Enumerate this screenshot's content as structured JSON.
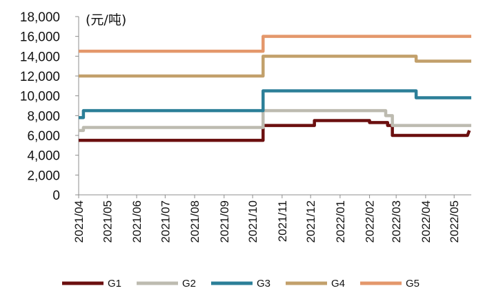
{
  "chart_data": {
    "type": "line",
    "step": true,
    "unit_label": "(元/吨)",
    "ylim": [
      0,
      18000
    ],
    "y_ticks": [
      {
        "value": 0,
        "label": "0"
      },
      {
        "value": 2000,
        "label": "2,000"
      },
      {
        "value": 4000,
        "label": "4,000"
      },
      {
        "value": 6000,
        "label": "6,000"
      },
      {
        "value": 8000,
        "label": "8,000"
      },
      {
        "value": 10000,
        "label": "10,000"
      },
      {
        "value": 12000,
        "label": "12,000"
      },
      {
        "value": 14000,
        "label": "14,000"
      },
      {
        "value": 16000,
        "label": "16,000"
      },
      {
        "value": 18000,
        "label": "18,000"
      }
    ],
    "x_ticks": [
      "2021/04",
      "2021/05",
      "2021/06",
      "2021/07",
      "2021/08",
      "2021/09",
      "2021/10",
      "2021/11",
      "2021/12",
      "2022/01",
      "2022/02",
      "2022/03",
      "2022/04",
      "2022/05"
    ],
    "xlim": [
      "2021-04-01",
      "2022-05-19"
    ],
    "grid": false,
    "legend_position": "bottom",
    "series": [
      {
        "name": "G1",
        "color": "#6b0f0f",
        "points": [
          [
            "2021-04-01",
            5500
          ],
          [
            "2021-10-12",
            5500
          ],
          [
            "2021-10-12",
            7000
          ],
          [
            "2021-12-05",
            7000
          ],
          [
            "2021-12-05",
            7500
          ],
          [
            "2022-02-01",
            7500
          ],
          [
            "2022-02-01",
            7300
          ],
          [
            "2022-02-20",
            7300
          ],
          [
            "2022-02-20",
            7000
          ],
          [
            "2022-02-25",
            7000
          ],
          [
            "2022-02-25",
            6000
          ],
          [
            "2022-05-15",
            6000
          ],
          [
            "2022-05-17",
            6500
          ]
        ]
      },
      {
        "name": "G2",
        "color": "#bdbbb0",
        "points": [
          [
            "2021-04-01",
            6500
          ],
          [
            "2021-04-06",
            6500
          ],
          [
            "2021-04-06",
            6800
          ],
          [
            "2021-10-12",
            6800
          ],
          [
            "2021-10-12",
            8500
          ],
          [
            "2022-02-18",
            8500
          ],
          [
            "2022-02-18",
            8000
          ],
          [
            "2022-02-25",
            8000
          ],
          [
            "2022-02-25",
            7000
          ],
          [
            "2022-05-19",
            7000
          ]
        ]
      },
      {
        "name": "G3",
        "color": "#2c7f98",
        "points": [
          [
            "2021-04-01",
            7800
          ],
          [
            "2021-04-06",
            7800
          ],
          [
            "2021-04-06",
            8500
          ],
          [
            "2021-10-12",
            8500
          ],
          [
            "2021-10-12",
            10500
          ],
          [
            "2022-03-22",
            10500
          ],
          [
            "2022-03-22",
            9800
          ],
          [
            "2022-05-19",
            9800
          ]
        ]
      },
      {
        "name": "G4",
        "color": "#c2a06b",
        "points": [
          [
            "2021-04-01",
            12000
          ],
          [
            "2021-10-12",
            12000
          ],
          [
            "2021-10-12",
            14000
          ],
          [
            "2022-03-22",
            14000
          ],
          [
            "2022-03-22",
            13500
          ],
          [
            "2022-05-19",
            13500
          ]
        ]
      },
      {
        "name": "G5",
        "color": "#e4976b",
        "points": [
          [
            "2021-04-01",
            14500
          ],
          [
            "2021-10-12",
            14500
          ],
          [
            "2021-10-12",
            16000
          ],
          [
            "2022-05-19",
            16000
          ]
        ]
      }
    ]
  }
}
